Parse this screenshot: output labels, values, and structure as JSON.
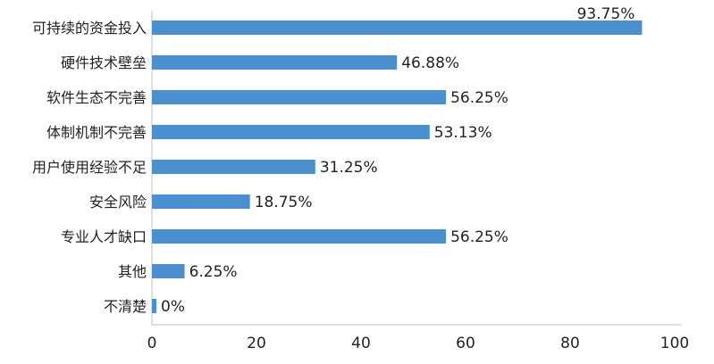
{
  "chart_data": {
    "type": "bar",
    "orientation": "horizontal",
    "title": "",
    "xlabel": "",
    "ylabel": "",
    "categories": [
      "可持续的资金投入",
      "硬件技术壁垒",
      "软件生态不完善",
      "体制机制不完善",
      "用户使用经验不足",
      "安全风险",
      "专业人才缺口",
      "其他",
      "不清楚"
    ],
    "values": [
      93.75,
      46.88,
      56.25,
      53.13,
      31.25,
      18.75,
      56.25,
      6.25,
      0
    ],
    "value_labels": [
      "93.75%",
      "46.88%",
      "56.25%",
      "53.13%",
      "31.25%",
      "18.75%",
      "56.25%",
      "6.25%",
      "0%"
    ],
    "xlim": [
      0,
      100
    ],
    "x_ticks": [
      "0",
      "20",
      "40",
      "60",
      "80",
      "100"
    ],
    "grid": false,
    "legend": "none",
    "colors": {
      "bar": "#4a8fd0",
      "axis": "#bfbfbf",
      "text": "#222222"
    }
  }
}
